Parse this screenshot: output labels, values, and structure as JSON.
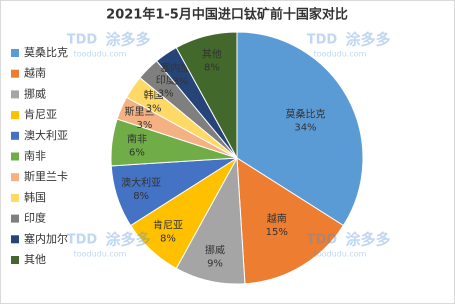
{
  "chart_data": {
    "type": "pie",
    "title": "2021年1-5月中国进口钛矿前十国家对比",
    "categories": [
      "莫桑比克",
      "越南",
      "挪威",
      "肯尼亚",
      "澳大利亚",
      "南非",
      "斯里兰卡",
      "韩国",
      "印度",
      "塞内加尔",
      "其他"
    ],
    "values": [
      34,
      15,
      9,
      8,
      8,
      6,
      3,
      3,
      3,
      3,
      8
    ],
    "value_labels": [
      "34%",
      "15%",
      "9%",
      "8%",
      "8%",
      "6%",
      "3%",
      "3%",
      "3%",
      "3%",
      "8%"
    ],
    "colors": [
      "#5b9bd5",
      "#ed7d31",
      "#a5a5a5",
      "#ffc000",
      "#4472c4",
      "#70ad47",
      "#f4b183",
      "#ffd966",
      "#7f7f7f",
      "#264478",
      "#43682b"
    ],
    "legend": "left"
  },
  "watermark": {
    "logo": "TDD",
    "brand": "涂多多",
    "url": "toodudu.com"
  }
}
